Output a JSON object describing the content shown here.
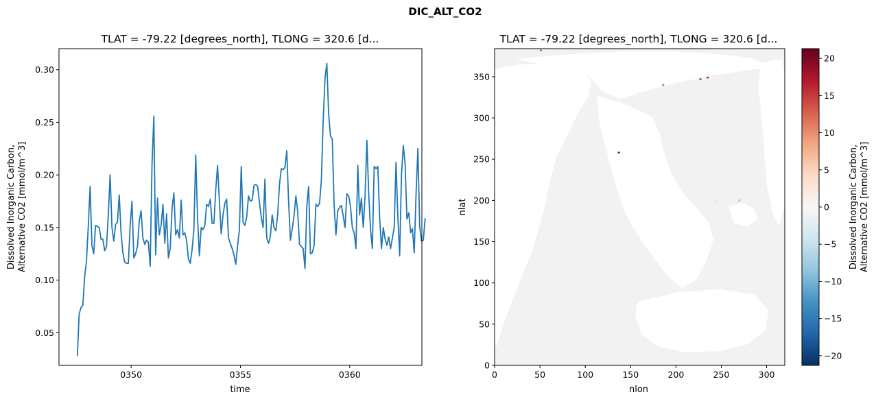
{
  "figure": {
    "suptitle": "DIC_ALT_CO2"
  },
  "chart_data": [
    {
      "type": "line",
      "title": "TLAT = -79.22 [degrees_north], TLONG = 320.6 [d...",
      "xlabel": "time",
      "ylabel_line1": "Dissolved Inorganic Carbon,",
      "ylabel_line2": "Alternative CO2 [mmol/m^3]",
      "xlim": [
        346.7,
        363.3
      ],
      "ylim": [
        0.019,
        0.32
      ],
      "x_ticks": [
        350,
        355,
        360
      ],
      "x_tick_labels": [
        "0350",
        "0355",
        "0360"
      ],
      "y_ticks": [
        0.05,
        0.1,
        0.15,
        0.2,
        0.25,
        0.3
      ],
      "y_tick_labels": [
        "0.05",
        "0.10",
        "0.15",
        "0.20",
        "0.25",
        "0.30"
      ],
      "color": "#1f77b4",
      "x_start": 347.54,
      "x_step": 0.0833,
      "values": [
        0.028,
        0.068,
        0.074,
        0.076,
        0.103,
        0.118,
        0.151,
        0.189,
        0.133,
        0.125,
        0.152,
        0.151,
        0.15,
        0.139,
        0.139,
        0.128,
        0.132,
        0.162,
        0.2,
        0.15,
        0.137,
        0.153,
        0.155,
        0.181,
        0.145,
        0.126,
        0.117,
        0.116,
        0.116,
        0.152,
        0.175,
        0.121,
        0.125,
        0.132,
        0.156,
        0.166,
        0.14,
        0.134,
        0.138,
        0.136,
        0.113,
        0.21,
        0.256,
        0.124,
        0.178,
        0.143,
        0.152,
        0.172,
        0.135,
        0.163,
        0.121,
        0.13,
        0.168,
        0.183,
        0.143,
        0.148,
        0.14,
        0.176,
        0.143,
        0.145,
        0.138,
        0.12,
        0.116,
        0.129,
        0.148,
        0.219,
        0.16,
        0.123,
        0.15,
        0.148,
        0.152,
        0.172,
        0.17,
        0.177,
        0.154,
        0.154,
        0.186,
        0.209,
        0.175,
        0.144,
        0.162,
        0.173,
        0.177,
        0.14,
        0.135,
        0.13,
        0.124,
        0.115,
        0.133,
        0.148,
        0.208,
        0.155,
        0.152,
        0.16,
        0.18,
        0.175,
        0.176,
        0.19,
        0.191,
        0.189,
        0.174,
        0.16,
        0.15,
        0.196,
        0.14,
        0.135,
        0.142,
        0.162,
        0.15,
        0.147,
        0.162,
        0.191,
        0.206,
        0.205,
        0.207,
        0.223,
        0.175,
        0.138,
        0.149,
        0.161,
        0.18,
        0.165,
        0.134,
        0.132,
        0.13,
        0.111,
        0.17,
        0.189,
        0.125,
        0.126,
        0.133,
        0.172,
        0.17,
        0.173,
        0.195,
        0.252,
        0.292,
        0.306,
        0.258,
        0.237,
        0.234,
        0.171,
        0.143,
        0.166,
        0.169,
        0.171,
        0.161,
        0.15,
        0.182,
        0.18,
        0.17,
        0.15,
        0.145,
        0.13,
        0.209,
        0.162,
        0.178,
        0.15,
        0.18,
        0.233,
        0.182,
        0.148,
        0.13,
        0.208,
        0.206,
        0.208,
        0.16,
        0.13,
        0.15,
        0.139,
        0.133,
        0.141,
        0.13,
        0.14,
        0.15,
        0.212,
        0.16,
        0.123,
        0.2,
        0.228,
        0.21,
        0.158,
        0.164,
        0.145,
        0.149,
        0.126,
        0.182,
        0.225,
        0.151,
        0.137,
        0.138,
        0.159
      ]
    },
    {
      "type": "heatmap",
      "title": "TLAT = -79.22 [degrees_north], TLONG = 320.6 [d...",
      "xlabel": "nlon",
      "ylabel": "nlat",
      "xlim": [
        0,
        320
      ],
      "ylim": [
        0,
        384
      ],
      "x_ticks": [
        0,
        50,
        100,
        150,
        200,
        250,
        300
      ],
      "x_tick_labels": [
        "0",
        "50",
        "100",
        "150",
        "200",
        "250",
        "300"
      ],
      "y_ticks": [
        0,
        50,
        100,
        150,
        200,
        250,
        300,
        350
      ],
      "y_tick_labels": [
        "0",
        "50",
        "100",
        "150",
        "200",
        "250",
        "300",
        "350"
      ],
      "colormap": "RdBu_r",
      "background_color": "#f2f2f2",
      "land_color": "#ffffff",
      "colorbar": {
        "label_line1": "Dissolved Inorganic Carbon,",
        "label_line2": "Alternative CO2 [mmol/m^3]",
        "range": [
          -21.3,
          21.3
        ],
        "ticks": [
          -20,
          -15,
          -10,
          -5,
          0,
          5,
          10,
          15,
          20
        ],
        "tick_labels": [
          "−20",
          "−15",
          "−10",
          "−5",
          "0",
          "5",
          "10",
          "15",
          "20"
        ],
        "stops": [
          "#053061",
          "#2166ac",
          "#4393c3",
          "#92c5de",
          "#d1e5f0",
          "#f7f7f7",
          "#fddbc7",
          "#f4a582",
          "#d6604d",
          "#b2182b",
          "#67001f"
        ]
      },
      "anomalies": [
        {
          "x": 235,
          "y": 349,
          "v": 20,
          "color": "#b2182b"
        },
        {
          "x": 186,
          "y": 340,
          "v": 10,
          "color": "#d6604d"
        },
        {
          "x": 137,
          "y": 258,
          "v": -21,
          "color": "#053061"
        },
        {
          "x": 227,
          "y": 347,
          "v": -12,
          "color": "#2166ac"
        },
        {
          "x": 270,
          "y": 200,
          "v": -5,
          "color": "#92c5de"
        },
        {
          "x": 245,
          "y": 200,
          "v": 4,
          "color": "#fddbc7"
        },
        {
          "x": 51,
          "y": 382,
          "v": -8,
          "color": "#4393c3"
        }
      ]
    }
  ]
}
